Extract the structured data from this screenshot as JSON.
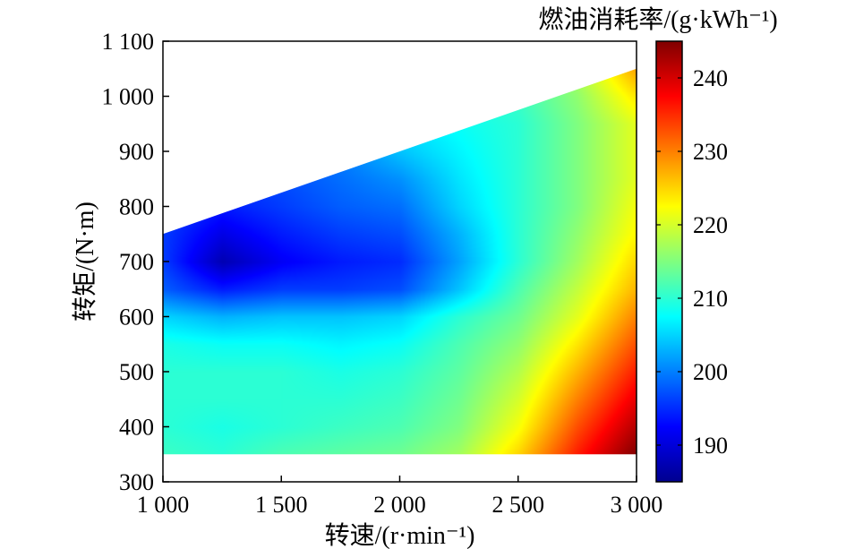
{
  "chart_data": {
    "type": "heatmap",
    "title": "",
    "xlabel": "转速/(r·min⁻¹)",
    "ylabel": "转矩/(N·m)",
    "colorbar_label": "燃油消耗率/(g·kWh⁻¹)",
    "xlim": [
      1000,
      3000
    ],
    "ylim": [
      300,
      1100
    ],
    "zlim": [
      185,
      245
    ],
    "x_ticks": [
      1000,
      1500,
      2000,
      2500,
      3000
    ],
    "x_tick_labels": [
      "1 000",
      "1 500",
      "2 000",
      "2 500",
      "3 000"
    ],
    "y_ticks": [
      300,
      400,
      500,
      600,
      700,
      800,
      900,
      1000,
      1100
    ],
    "y_tick_labels": [
      "300",
      "400",
      "500",
      "600",
      "700",
      "800",
      "900",
      "1 000",
      "1 100"
    ],
    "colorbar_ticks": [
      190,
      200,
      210,
      220,
      230,
      240
    ],
    "colorbar_tick_labels": [
      "190",
      "200",
      "210",
      "220",
      "230",
      "240"
    ],
    "colormap": "jet",
    "region": {
      "x_range": [
        1000,
        3000
      ],
      "y_min": 350,
      "upper_boundary": [
        [
          1000,
          750
        ],
        [
          3000,
          1050
        ]
      ]
    },
    "x": [
      1000,
      1250,
      1500,
      1750,
      2000,
      2250,
      2500,
      2750,
      3000
    ],
    "y": [
      350,
      400,
      450,
      500,
      550,
      600,
      650,
      700,
      750,
      800,
      850,
      900,
      950,
      1000,
      1050
    ],
    "z": [
      [
        211,
        210,
        212,
        213,
        214,
        217,
        225,
        236,
        245
      ],
      [
        210,
        209,
        210,
        211,
        212,
        215,
        222,
        233,
        242
      ],
      [
        210,
        210,
        210,
        210,
        211,
        214,
        220,
        230,
        239
      ],
      [
        210,
        210,
        210,
        209,
        210,
        213,
        218,
        227,
        236
      ],
      [
        209,
        208,
        208,
        207,
        208,
        212,
        216,
        224,
        233
      ],
      [
        205,
        203,
        204,
        204,
        205,
        210,
        214,
        221,
        230
      ],
      [
        198,
        194,
        196,
        196,
        197,
        204,
        212,
        219,
        227
      ],
      [
        196,
        188,
        192,
        194,
        195,
        202,
        210,
        217,
        225
      ],
      [
        196,
        191,
        194,
        196,
        197,
        203,
        210,
        216,
        223
      ],
      [
        197,
        194,
        196,
        198,
        199,
        205,
        210,
        215,
        222
      ],
      [
        198,
        196,
        197,
        199,
        201,
        206,
        210,
        215,
        221
      ],
      [
        199,
        197,
        198,
        200,
        204,
        207,
        210,
        215,
        221
      ],
      [
        200,
        199,
        200,
        201,
        206,
        208,
        210,
        215,
        221
      ],
      [
        201,
        200,
        201,
        202,
        207,
        209,
        211,
        216,
        224
      ],
      [
        202,
        201,
        202,
        203,
        208,
        210,
        212,
        218,
        228
      ]
    ]
  }
}
